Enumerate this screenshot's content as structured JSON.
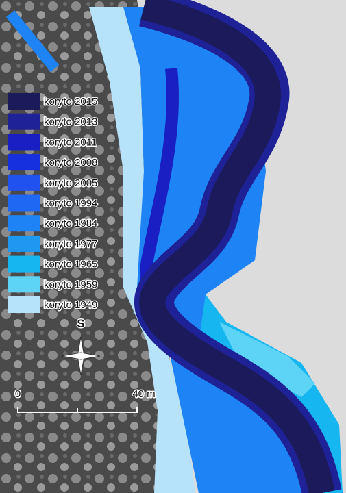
{
  "legend": {
    "items": [
      {
        "label": "koryto 2015",
        "color": "#1b1b5c"
      },
      {
        "label": "koryto 2013",
        "color": "#1f2196"
      },
      {
        "label": "koryto 2011",
        "color": "#1a1fc4"
      },
      {
        "label": "koryto 2008",
        "color": "#1630e0"
      },
      {
        "label": "koryto 2005",
        "color": "#1f52ee"
      },
      {
        "label": "koryto 1994",
        "color": "#1e68f4"
      },
      {
        "label": "koryto 1984",
        "color": "#1e84f5"
      },
      {
        "label": "koryto 1977",
        "color": "#1e98f0"
      },
      {
        "label": "koryto 1965",
        "color": "#16b6f0"
      },
      {
        "label": "koryto 1959",
        "color": "#5dd3f5"
      },
      {
        "label": "koryto 1949",
        "color": "#b6e2fa"
      }
    ]
  },
  "north_arrow": {
    "label": "S"
  },
  "scale_bar": {
    "start": "0",
    "end": "40 m"
  }
}
